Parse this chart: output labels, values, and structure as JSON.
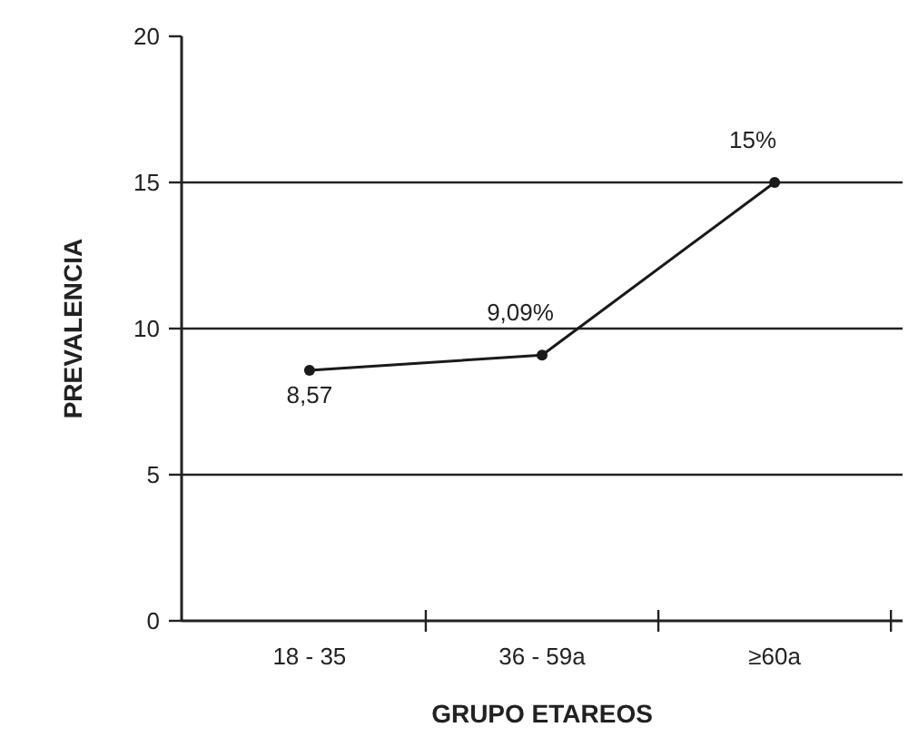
{
  "chart_data": {
    "type": "line",
    "xlabel": "GRUPO ETAREOS",
    "ylabel": "PREVALENCIA",
    "categories": [
      "18 - 35",
      "36 - 59a",
      "≥60a"
    ],
    "series": [
      {
        "color": "#1a1a1a",
        "values": [
          8.57,
          9.09,
          15
        ],
        "value_labels": [
          "8,57",
          "9,09%",
          "15%"
        ]
      }
    ],
    "ylim": [
      0,
      20
    ],
    "yticks": [
      0,
      5,
      10,
      15,
      20
    ],
    "grid": "y",
    "marker": "circle",
    "line_style": "solid"
  }
}
